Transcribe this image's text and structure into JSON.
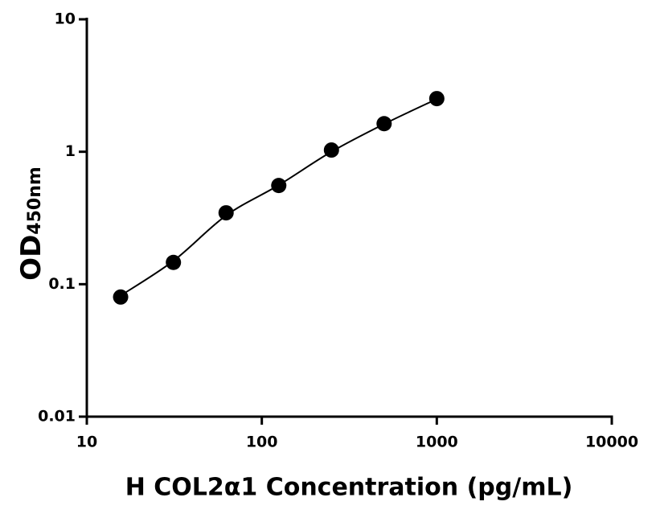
{
  "chart_data": {
    "type": "scatter",
    "x_label": "H COL2α1 Concentration (pg/mL)",
    "y_label": "OD",
    "y_label_subscript": "450nm",
    "x_log": true,
    "y_log": true,
    "xlim": [
      10,
      10000
    ],
    "xticks": [
      10,
      100,
      1000,
      10000
    ],
    "ylim": [
      0.01,
      10
    ],
    "yticks": [
      0.01,
      0.1,
      1,
      10
    ],
    "series": [
      {
        "kind": "points",
        "color": "#000000",
        "x": [
          15.6,
          31.25,
          62.5,
          125,
          250,
          500,
          1000
        ],
        "values": [
          0.08,
          0.146,
          0.346,
          0.556,
          1.03,
          1.63,
          2.52
        ]
      },
      {
        "kind": "curve",
        "color": "#000000",
        "x": [
          15.6,
          31.25,
          62.5,
          125,
          250,
          500,
          1000
        ],
        "values": [
          0.082,
          0.15,
          0.33,
          0.56,
          1.0,
          1.62,
          2.5
        ]
      }
    ]
  }
}
